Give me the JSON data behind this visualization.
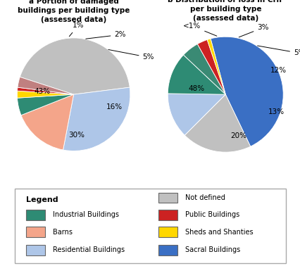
{
  "chart_a": {
    "title": "a Portion of damaged\nbuildings per building type\n(assessed data)",
    "sizes": [
      43,
      30,
      16,
      5,
      2,
      1,
      3
    ],
    "colors": [
      "#c0c0c0",
      "#aec6e8",
      "#f4a58a",
      "#2e8b74",
      "#ffd700",
      "#cc2222",
      "#c08080"
    ],
    "startangle": 162
  },
  "chart_b": {
    "title": "b Distribution of loss in CHF\nper building type\n(assessed data)",
    "sizes": [
      48,
      20,
      13,
      12,
      5,
      3,
      1
    ],
    "colors": [
      "#3a6fc4",
      "#c0c0c0",
      "#aec6e8",
      "#2e8b74",
      "#3a8a74",
      "#cc2222",
      "#ffd700"
    ],
    "startangle": 105
  },
  "left_col": [
    {
      "label": "Industrial Buildings",
      "color": "#2e8b74"
    },
    {
      "label": "Barns",
      "color": "#f4a58a"
    },
    {
      "label": "Residential Buildings",
      "color": "#aec6e8"
    }
  ],
  "right_col": [
    {
      "label": "Not defined",
      "color": "#c0c0c0"
    },
    {
      "label": "Public Buildings",
      "color": "#cc2222"
    },
    {
      "label": "Sheds and Shanties",
      "color": "#ffd700"
    },
    {
      "label": "Sacral Buildings",
      "color": "#3a6fc4"
    }
  ],
  "bg_color": "#ffffff"
}
